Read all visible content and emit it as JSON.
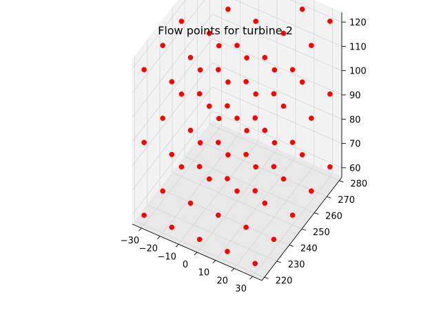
{
  "chart_data": {
    "type": "scatter",
    "projection": "3d",
    "title": "Flow points for turbine 2",
    "xlabel": "",
    "ylabel": "",
    "zlabel": "",
    "grid": true,
    "colors": {
      "point": "#ff0000",
      "pane": "#f2f2f2",
      "grid": "#d6d6d6"
    },
    "axes": {
      "x": {
        "lim": [
          -35,
          35
        ],
        "ticks": [
          -30,
          -20,
          -10,
          0,
          10,
          20,
          30
        ],
        "tick_labels": [
          "−30",
          "−20",
          "−10",
          "0",
          "10",
          "20",
          "30"
        ]
      },
      "y": {
        "lim": [
          218,
          282
        ],
        "ticks": [
          220,
          230,
          240,
          250,
          260,
          270,
          280
        ],
        "tick_labels": [
          "220",
          "230",
          "240",
          "250",
          "260",
          "270",
          "280"
        ]
      },
      "z": {
        "lim": [
          56,
          124
        ],
        "ticks": [
          60,
          70,
          80,
          90,
          100,
          110,
          120
        ],
        "tick_labels": [
          "60",
          "70",
          "80",
          "90",
          "100",
          "110",
          "120"
        ]
      }
    },
    "grid_values": {
      "x": [
        -30,
        -15,
        0,
        15,
        30
      ],
      "y": [
        220,
        235,
        250,
        265,
        280
      ],
      "z": [
        60,
        90,
        120
      ]
    }
  }
}
